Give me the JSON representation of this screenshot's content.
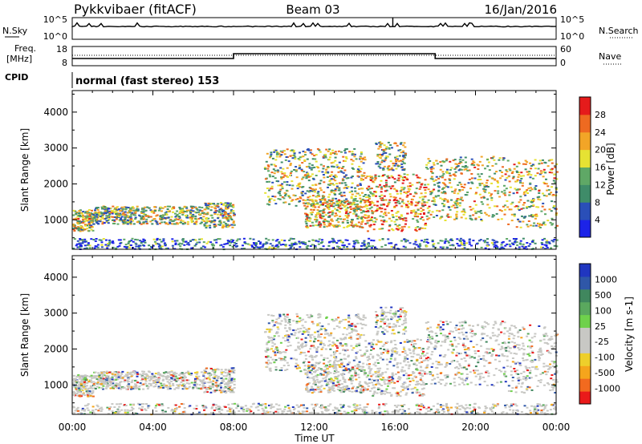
{
  "header": {
    "station": "Pykkvibaer (fitACF)",
    "beam": "Beam 03",
    "date": "16/Jan/2016",
    "mode": "normal (fast stereo) 153"
  },
  "strip": {
    "nsky_label": "N.Sky",
    "nsky_ticks": [
      "10^5",
      "10^0"
    ],
    "nsearch_label": "N.Search",
    "nsearch_ticks": [
      "10^5",
      "10^0"
    ],
    "freq_label_1": "Freq.",
    "freq_label_2": "[MHz]",
    "freq_ticks": [
      "18",
      "8"
    ],
    "nave_label": "Nave",
    "nave_ticks": [
      "60",
      "0"
    ],
    "cpid_label": "CPID"
  },
  "colors": {
    "scale_power": [
      "#1c23e8",
      "#2a4fb8",
      "#3f8c69",
      "#5fa866",
      "#e6e233",
      "#f2a527",
      "#ee6a21",
      "#e51b1b"
    ],
    "scale_velocity": [
      "#ea1a1a",
      "#f26a1f",
      "#f5a51c",
      "#eecf2b",
      "#c8c8c4",
      "#c8c8c4",
      "#6fd14c",
      "#5aa85e",
      "#40875e",
      "#2f57a8",
      "#2036c0"
    ]
  },
  "chart_data": [
    {
      "type": "heatmap",
      "title": "Pykkvibaer (fitACF)",
      "xlabel": "Time UT",
      "ylabel": "Slant Range [km]",
      "x_ticks": [
        "00:00",
        "04:00",
        "08:00",
        "12:00",
        "16:00",
        "20:00",
        "00:00"
      ],
      "y_ticks": [
        1000,
        2000,
        3000,
        4000
      ],
      "ylim": [
        180,
        4600
      ],
      "colorbar": {
        "label": "Power [dB]",
        "ticks": [
          "4",
          "8",
          "12",
          "16",
          "20",
          "24",
          "28"
        ]
      }
    },
    {
      "type": "heatmap",
      "xlabel": "Time UT",
      "ylabel": "Slant Range [km]",
      "x_ticks": [
        "00:00",
        "04:00",
        "08:00",
        "12:00",
        "16:00",
        "20:00",
        "00:00"
      ],
      "y_ticks": [
        1000,
        2000,
        3000,
        4000
      ],
      "ylim": [
        180,
        4600
      ],
      "colorbar": {
        "label": "Velocity [m s-1]",
        "ticks": [
          "1000",
          "500",
          "100",
          "25",
          "-25",
          "-100",
          "-500",
          "-1000"
        ]
      }
    }
  ]
}
